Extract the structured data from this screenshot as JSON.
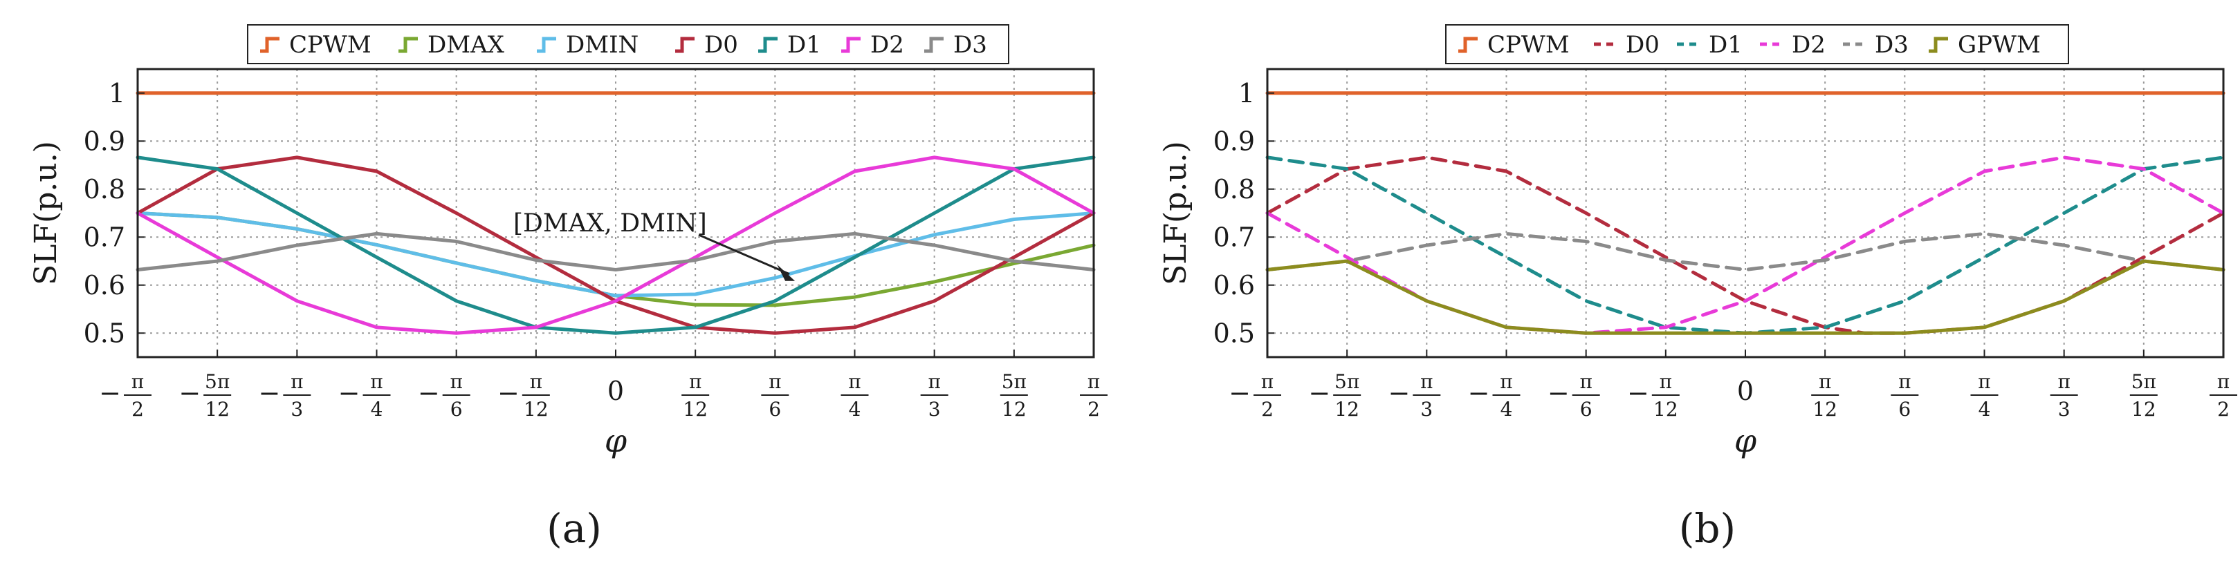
{
  "chart_data": [
    {
      "panel_label": "(a)",
      "type": "line",
      "xlabel": "φ",
      "ylabel": "SLF(p.u.)",
      "xlim": [
        -1.5708,
        1.5708
      ],
      "ylim": [
        0.45,
        1.05
      ],
      "grid": true,
      "legend_position": "top",
      "x_ticks": [
        {
          "value": -1.5708,
          "label": [
            "−",
            "π",
            "2"
          ]
        },
        {
          "value": -1.309,
          "label": [
            "−",
            "5π",
            "12"
          ]
        },
        {
          "value": -1.0472,
          "label": [
            "−",
            "π",
            "3"
          ]
        },
        {
          "value": -0.7854,
          "label": [
            "−",
            "π",
            "4"
          ]
        },
        {
          "value": -0.5236,
          "label": [
            "−",
            "π",
            "6"
          ]
        },
        {
          "value": -0.2618,
          "label": [
            "−",
            "π",
            "12"
          ]
        },
        {
          "value": 0,
          "label": [
            "",
            "0",
            ""
          ]
        },
        {
          "value": 0.2618,
          "label": [
            "",
            "π",
            "12"
          ]
        },
        {
          "value": 0.5236,
          "label": [
            "",
            "π",
            "6"
          ]
        },
        {
          "value": 0.7854,
          "label": [
            "",
            "π",
            "4"
          ]
        },
        {
          "value": 1.0472,
          "label": [
            "",
            "π",
            "3"
          ]
        },
        {
          "value": 1.309,
          "label": [
            "",
            "5π",
            "12"
          ]
        },
        {
          "value": 1.5708,
          "label": [
            "",
            "π",
            "2"
          ]
        }
      ],
      "y_ticks": [
        {
          "value": 0.5,
          "label": "0.5"
        },
        {
          "value": 0.6,
          "label": "0.6"
        },
        {
          "value": 0.7,
          "label": "0.7"
        },
        {
          "value": 0.8,
          "label": "0.8"
        },
        {
          "value": 0.9,
          "label": "0.9"
        },
        {
          "value": 1.0,
          "label": "1"
        }
      ],
      "legend": [
        "CPWM",
        "DMAX",
        "DMIN",
        "D0",
        "D1",
        "D2",
        "D3"
      ],
      "annotation": {
        "text": "[DMAX, DMIN]",
        "target": [
          0.589,
          0.6
        ]
      },
      "series": [
        {
          "name": "CPWM",
          "color": "#e0622a",
          "dash": "solid",
          "x": [
            -1.5708,
            1.5708
          ],
          "y": [
            1.0,
            1.0
          ]
        },
        {
          "name": "DMAX",
          "color": "#7aa832",
          "dash": "solid",
          "x": [
            -1.5708,
            -1.309,
            -1.0472,
            -0.7854,
            -0.5236,
            -0.2618,
            0,
            0.2618,
            0.5236,
            0.7854,
            1.0472,
            1.309,
            1.5708
          ],
          "y": [
            0.75,
            0.741,
            0.717,
            0.684,
            0.646,
            0.609,
            0.578,
            0.559,
            0.558,
            0.575,
            0.607,
            0.645,
            0.683
          ]
        },
        {
          "name": "DMIN",
          "color": "#5fbde8",
          "dash": "solid",
          "x": [
            -1.5708,
            -1.309,
            -1.0472,
            -0.7854,
            -0.5236,
            -0.2618,
            0,
            0.2618,
            0.5236,
            0.7854,
            1.0472,
            1.309,
            1.5708
          ],
          "y": [
            0.75,
            0.741,
            0.717,
            0.684,
            0.646,
            0.609,
            0.578,
            0.581,
            0.615,
            0.661,
            0.705,
            0.737,
            0.75
          ]
        },
        {
          "name": "D0",
          "color": "#b32c3e",
          "dash": "solid",
          "x": [
            -1.5708,
            -1.309,
            -1.0472,
            -0.7854,
            -0.5236,
            -0.2618,
            0,
            0.2618,
            0.5236,
            0.7854,
            1.0472,
            1.309,
            1.5708
          ],
          "y": [
            0.75,
            0.842,
            0.866,
            0.837,
            0.75,
            0.658,
            0.567,
            0.512,
            0.5,
            0.512,
            0.567,
            0.658,
            0.75
          ]
        },
        {
          "name": "D1",
          "color": "#1e8c8c",
          "dash": "solid",
          "x": [
            -1.5708,
            -1.309,
            -1.0472,
            -0.7854,
            -0.5236,
            -0.2618,
            0,
            0.2618,
            0.5236,
            0.7854,
            1.0472,
            1.309,
            1.5708
          ],
          "y": [
            0.866,
            0.842,
            0.75,
            0.658,
            0.567,
            0.512,
            0.5,
            0.512,
            0.567,
            0.658,
            0.75,
            0.842,
            0.866
          ]
        },
        {
          "name": "D2",
          "color": "#e83ad8",
          "dash": "solid",
          "x": [
            -1.5708,
            -1.309,
            -1.0472,
            -0.7854,
            -0.5236,
            -0.2618,
            0,
            0.2618,
            0.5236,
            0.7854,
            1.0472,
            1.309,
            1.5708
          ],
          "y": [
            0.75,
            0.658,
            0.567,
            0.512,
            0.5,
            0.512,
            0.567,
            0.658,
            0.75,
            0.837,
            0.866,
            0.842,
            0.75
          ]
        },
        {
          "name": "D3",
          "color": "#8a8a8a",
          "dash": "solid",
          "x": [
            -1.5708,
            -1.309,
            -1.0472,
            -0.7854,
            -0.5236,
            -0.2618,
            0,
            0.2618,
            0.5236,
            0.7854,
            1.0472,
            1.309,
            1.5708
          ],
          "y": [
            0.632,
            0.65,
            0.683,
            0.707,
            0.691,
            0.652,
            0.632,
            0.652,
            0.691,
            0.707,
            0.683,
            0.65,
            0.632
          ]
        }
      ]
    },
    {
      "panel_label": "(b)",
      "type": "line",
      "xlabel": "φ",
      "ylabel": "SLF(p.u.)",
      "xlim": [
        -1.5708,
        1.5708
      ],
      "ylim": [
        0.45,
        1.05
      ],
      "grid": true,
      "legend_position": "top",
      "x_ticks": [
        {
          "value": -1.5708,
          "label": [
            "−",
            "π",
            "2"
          ]
        },
        {
          "value": -1.309,
          "label": [
            "−",
            "5π",
            "12"
          ]
        },
        {
          "value": -1.0472,
          "label": [
            "−",
            "π",
            "3"
          ]
        },
        {
          "value": -0.7854,
          "label": [
            "−",
            "π",
            "4"
          ]
        },
        {
          "value": -0.5236,
          "label": [
            "−",
            "π",
            "6"
          ]
        },
        {
          "value": -0.2618,
          "label": [
            "−",
            "π",
            "12"
          ]
        },
        {
          "value": 0,
          "label": [
            "",
            "0",
            ""
          ]
        },
        {
          "value": 0.2618,
          "label": [
            "",
            "π",
            "12"
          ]
        },
        {
          "value": 0.5236,
          "label": [
            "",
            "π",
            "6"
          ]
        },
        {
          "value": 0.7854,
          "label": [
            "",
            "π",
            "4"
          ]
        },
        {
          "value": 1.0472,
          "label": [
            "",
            "π",
            "3"
          ]
        },
        {
          "value": 1.309,
          "label": [
            "",
            "5π",
            "12"
          ]
        },
        {
          "value": 1.5708,
          "label": [
            "",
            "π",
            "2"
          ]
        }
      ],
      "y_ticks": [
        {
          "value": 0.5,
          "label": "0.5"
        },
        {
          "value": 0.6,
          "label": "0.6"
        },
        {
          "value": 0.7,
          "label": "0.7"
        },
        {
          "value": 0.8,
          "label": "0.8"
        },
        {
          "value": 0.9,
          "label": "0.9"
        },
        {
          "value": 1.0,
          "label": "1"
        }
      ],
      "legend": [
        "CPWM",
        "D0",
        "D1",
        "D2",
        "D3",
        "GPWM"
      ],
      "series": [
        {
          "name": "CPWM",
          "color": "#e0622a",
          "dash": "solid",
          "x": [
            -1.5708,
            1.5708
          ],
          "y": [
            1.0,
            1.0
          ]
        },
        {
          "name": "D0",
          "color": "#b32c3e",
          "dash": "dashed",
          "x": [
            -1.5708,
            -1.309,
            -1.0472,
            -0.7854,
            -0.5236,
            -0.2618,
            0,
            0.2618,
            0.3927,
            0.5236,
            0.7854,
            1.0472,
            1.309,
            1.5708
          ],
          "y": [
            0.75,
            0.842,
            0.866,
            0.837,
            0.75,
            0.658,
            0.567,
            0.512,
            0.5,
            0.5,
            0.512,
            0.567,
            0.658,
            0.75
          ]
        },
        {
          "name": "D1",
          "color": "#1e8c8c",
          "dash": "dashed",
          "x": [
            -1.5708,
            -1.309,
            -1.0472,
            -0.7854,
            -0.5236,
            -0.2618,
            0,
            0.2618,
            0.5236,
            0.7854,
            1.0472,
            1.309,
            1.5708
          ],
          "y": [
            0.866,
            0.842,
            0.75,
            0.658,
            0.567,
            0.512,
            0.5,
            0.512,
            0.567,
            0.658,
            0.75,
            0.842,
            0.866
          ]
        },
        {
          "name": "D2",
          "color": "#e83ad8",
          "dash": "dashed",
          "x": [
            -1.5708,
            -1.309,
            -1.0472,
            -0.7854,
            -0.5236,
            -0.2618,
            0,
            0.2618,
            0.5236,
            0.7854,
            1.0472,
            1.309,
            1.5708
          ],
          "y": [
            0.75,
            0.658,
            0.567,
            0.512,
            0.5,
            0.512,
            0.567,
            0.658,
            0.75,
            0.837,
            0.866,
            0.842,
            0.75
          ]
        },
        {
          "name": "D3",
          "color": "#8a8a8a",
          "dash": "dashed",
          "x": [
            -1.5708,
            -1.309,
            -1.0472,
            -0.7854,
            -0.5236,
            -0.2618,
            0,
            0.2618,
            0.5236,
            0.7854,
            1.0472,
            1.309,
            1.5708
          ],
          "y": [
            0.632,
            0.65,
            0.683,
            0.707,
            0.691,
            0.652,
            0.632,
            0.652,
            0.691,
            0.707,
            0.683,
            0.65,
            0.632
          ]
        },
        {
          "name": "GPWM",
          "color": "#8c8c1e",
          "dash": "solid",
          "x": [
            -1.5708,
            -1.309,
            -1.0472,
            -0.7854,
            -0.5236,
            -0.2618,
            0,
            0.2618,
            0.5236,
            0.7854,
            1.0472,
            1.309,
            1.5708
          ],
          "y": [
            0.632,
            0.65,
            0.567,
            0.512,
            0.5,
            0.5,
            0.5,
            0.5,
            0.5,
            0.512,
            0.567,
            0.65,
            0.632
          ]
        }
      ]
    }
  ]
}
